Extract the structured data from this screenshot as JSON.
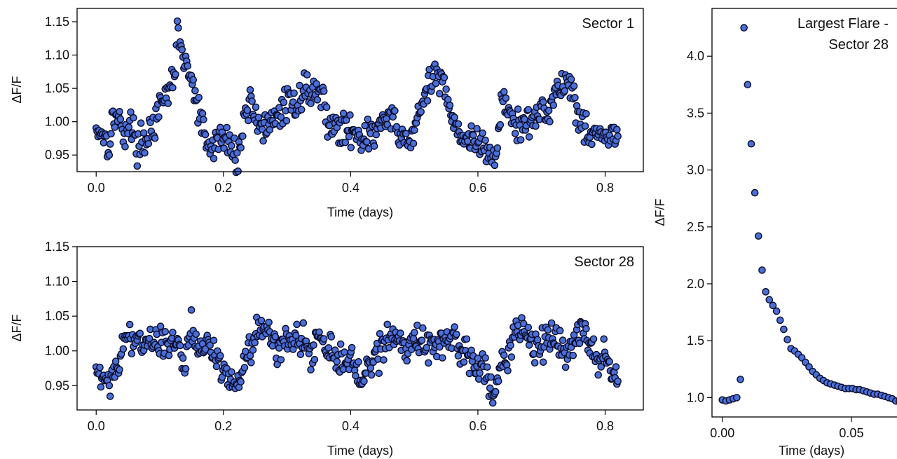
{
  "chart_data": [
    {
      "type": "scatter",
      "panel_label": "Sector 1",
      "xlabel": "Time (days)",
      "ylabel": "ΔF/F",
      "xlim": [
        -0.03,
        0.86
      ],
      "ylim": [
        0.925,
        1.17
      ],
      "xticks": [
        0.0,
        0.2,
        0.4,
        0.6,
        0.8
      ],
      "xtick_labels": [
        "0.0",
        "0.2",
        "0.4",
        "0.6",
        "0.8"
      ],
      "yticks": [
        0.95,
        1.0,
        1.05,
        1.1,
        1.15
      ],
      "ytick_labels": [
        "0.95",
        "1.00",
        "1.05",
        "1.10",
        "1.15"
      ],
      "marker_color": "#4a6fd6",
      "edge_color": "#0b0b2a",
      "grid": false,
      "keypoints": [
        [
          0,
          0.99
        ],
        [
          0.01,
          0.985
        ],
        [
          0.02,
          0.965
        ],
        [
          0.028,
          1.015
        ],
        [
          0.035,
          1.0
        ],
        [
          0.045,
          0.985
        ],
        [
          0.055,
          0.995
        ],
        [
          0.065,
          0.965
        ],
        [
          0.075,
          0.97
        ],
        [
          0.085,
          0.99
        ],
        [
          0.095,
          1.0
        ],
        [
          0.105,
          1.03
        ],
        [
          0.115,
          1.045
        ],
        [
          0.12,
          1.06
        ],
        [
          0.125,
          1.09
        ],
        [
          0.128,
          1.16
        ],
        [
          0.132,
          1.1
        ],
        [
          0.14,
          1.09
        ],
        [
          0.15,
          1.06
        ],
        [
          0.16,
          1.02
        ],
        [
          0.17,
          0.98
        ],
        [
          0.178,
          0.955
        ],
        [
          0.19,
          0.975
        ],
        [
          0.2,
          0.975
        ],
        [
          0.21,
          0.965
        ],
        [
          0.22,
          0.95
        ],
        [
          0.228,
          0.965
        ],
        [
          0.235,
          1.02
        ],
        [
          0.245,
          1.03
        ],
        [
          0.255,
          1.0
        ],
        [
          0.27,
          0.985
        ],
        [
          0.28,
          1.0
        ],
        [
          0.29,
          1.015
        ],
        [
          0.3,
          1.03
        ],
        [
          0.31,
          1.02
        ],
        [
          0.32,
          1.04
        ],
        [
          0.33,
          1.05
        ],
        [
          0.345,
          1.045
        ],
        [
          0.355,
          1.04
        ],
        [
          0.365,
          1.0
        ],
        [
          0.38,
          0.99
        ],
        [
          0.39,
          0.985
        ],
        [
          0.405,
          0.99
        ],
        [
          0.42,
          0.975
        ],
        [
          0.435,
          0.98
        ],
        [
          0.45,
          1.0
        ],
        [
          0.46,
          1.01
        ],
        [
          0.475,
          0.98
        ],
        [
          0.49,
          0.97
        ],
        [
          0.505,
          1.0
        ],
        [
          0.515,
          1.03
        ],
        [
          0.525,
          1.06
        ],
        [
          0.535,
          1.065
        ],
        [
          0.545,
          1.065
        ],
        [
          0.555,
          1.03
        ],
        [
          0.565,
          0.99
        ],
        [
          0.58,
          0.98
        ],
        [
          0.595,
          0.965
        ],
        [
          0.61,
          0.965
        ],
        [
          0.618,
          0.945
        ],
        [
          0.63,
          0.96
        ],
        [
          0.638,
          1.03
        ],
        [
          0.648,
          1.02
        ],
        [
          0.66,
          0.99
        ],
        [
          0.675,
          0.995
        ],
        [
          0.69,
          1.005
        ],
        [
          0.7,
          1.02
        ],
        [
          0.71,
          1.02
        ],
        [
          0.72,
          1.04
        ],
        [
          0.73,
          1.055
        ],
        [
          0.74,
          1.06
        ],
        [
          0.75,
          1.045
        ],
        [
          0.76,
          1.0
        ],
        [
          0.775,
          0.985
        ],
        [
          0.79,
          0.985
        ],
        [
          0.8,
          0.975
        ],
        [
          0.81,
          0.98
        ],
        [
          0.82,
          0.97
        ]
      ]
    },
    {
      "type": "scatter",
      "panel_label": "Sector 28",
      "xlabel": "Time (days)",
      "ylabel": "ΔF/F",
      "xlim": [
        -0.03,
        0.86
      ],
      "ylim": [
        0.915,
        1.15
      ],
      "xticks": [
        0.0,
        0.2,
        0.4,
        0.6,
        0.8
      ],
      "xtick_labels": [
        "0.0",
        "0.2",
        "0.4",
        "0.6",
        "0.8"
      ],
      "yticks": [
        0.95,
        1.0,
        1.05,
        1.1,
        1.15
      ],
      "ytick_labels": [
        "0.95",
        "1.00",
        "1.05",
        "1.10",
        "1.15"
      ],
      "marker_color": "#4a6fd6",
      "edge_color": "#0b0b2a",
      "grid": false,
      "keypoints": [
        [
          0,
          0.975
        ],
        [
          0.01,
          0.955
        ],
        [
          0.02,
          0.96
        ],
        [
          0.03,
          0.975
        ],
        [
          0.04,
          1.0
        ],
        [
          0.05,
          1.03
        ],
        [
          0.06,
          1.02
        ],
        [
          0.075,
          1.01
        ],
        [
          0.09,
          1.015
        ],
        [
          0.1,
          1.01
        ],
        [
          0.11,
          1.005
        ],
        [
          0.12,
          1.015
        ],
        [
          0.13,
          1.005
        ],
        [
          0.14,
          0.975
        ],
        [
          0.15,
          1.04
        ],
        [
          0.16,
          1.005
        ],
        [
          0.175,
          1.005
        ],
        [
          0.19,
          0.99
        ],
        [
          0.2,
          0.975
        ],
        [
          0.21,
          0.965
        ],
        [
          0.218,
          0.945
        ],
        [
          0.228,
          0.975
        ],
        [
          0.24,
          1.0
        ],
        [
          0.255,
          1.035
        ],
        [
          0.27,
          1.015
        ],
        [
          0.29,
          1.01
        ],
        [
          0.31,
          1.02
        ],
        [
          0.325,
          1.03
        ],
        [
          0.335,
          0.99
        ],
        [
          0.35,
          1.025
        ],
        [
          0.365,
          1.01
        ],
        [
          0.375,
          0.99
        ],
        [
          0.39,
          0.985
        ],
        [
          0.405,
          0.975
        ],
        [
          0.418,
          0.96
        ],
        [
          0.43,
          0.975
        ],
        [
          0.445,
          0.995
        ],
        [
          0.46,
          1.025
        ],
        [
          0.47,
          1.02
        ],
        [
          0.485,
          1.01
        ],
        [
          0.5,
          1.015
        ],
        [
          0.52,
          1.01
        ],
        [
          0.54,
          1.005
        ],
        [
          0.555,
          1.02
        ],
        [
          0.57,
          1.01
        ],
        [
          0.585,
          0.985
        ],
        [
          0.6,
          0.98
        ],
        [
          0.615,
          0.965
        ],
        [
          0.622,
          0.935
        ],
        [
          0.635,
          0.975
        ],
        [
          0.65,
          1.005
        ],
        [
          0.66,
          1.035
        ],
        [
          0.675,
          1.015
        ],
        [
          0.69,
          1.01
        ],
        [
          0.705,
          1.005
        ],
        [
          0.72,
          1.03
        ],
        [
          0.735,
          1.0
        ],
        [
          0.75,
          1.01
        ],
        [
          0.762,
          1.035
        ],
        [
          0.775,
          1.01
        ],
        [
          0.79,
          0.98
        ],
        [
          0.8,
          0.995
        ],
        [
          0.81,
          0.975
        ],
        [
          0.82,
          0.96
        ]
      ]
    },
    {
      "type": "scatter",
      "panel_label": "Largest Flare -\nSector 28",
      "panel_label_lines": [
        "Largest Flare -",
        "Sector 28"
      ],
      "xlabel": "Time (days)",
      "ylabel": "ΔF/F",
      "xlim": [
        -0.004,
        0.072
      ],
      "ylim": [
        0.83,
        4.42
      ],
      "xticks": [
        0.0,
        0.05
      ],
      "xtick_labels": [
        "0.00",
        "0.05"
      ],
      "yticks": [
        1.0,
        1.5,
        2.0,
        2.5,
        3.0,
        3.5,
        4.0
      ],
      "ytick_labels": [
        "1.0",
        "1.5",
        "2.0",
        "2.5",
        "3.0",
        "3.5",
        "4.0"
      ],
      "marker_color": "#4a6fd6",
      "edge_color": "#0b0b2a",
      "grid": false,
      "x": [
        0.0,
        0.0014,
        0.0028,
        0.0042,
        0.0056,
        0.007,
        0.0084,
        0.0098,
        0.0112,
        0.0126,
        0.014,
        0.0154,
        0.0168,
        0.0182,
        0.0196,
        0.021,
        0.0224,
        0.0238,
        0.0252,
        0.0266,
        0.028,
        0.0294,
        0.0308,
        0.0322,
        0.0336,
        0.035,
        0.0364,
        0.0378,
        0.0392,
        0.0406,
        0.042,
        0.0434,
        0.0448,
        0.0462,
        0.0476,
        0.049,
        0.0504,
        0.0518,
        0.0532,
        0.0546,
        0.056,
        0.0574,
        0.0588,
        0.0602,
        0.0616,
        0.063,
        0.0644,
        0.0658,
        0.0672,
        0.0686,
        0.07
      ],
      "y": [
        0.98,
        0.97,
        0.98,
        0.99,
        1.0,
        1.16,
        4.25,
        3.75,
        3.23,
        2.8,
        2.42,
        2.12,
        1.93,
        1.86,
        1.81,
        1.76,
        1.68,
        1.6,
        1.51,
        1.43,
        1.41,
        1.38,
        1.35,
        1.31,
        1.27,
        1.23,
        1.2,
        1.17,
        1.15,
        1.13,
        1.12,
        1.11,
        1.1,
        1.09,
        1.08,
        1.08,
        1.08,
        1.07,
        1.07,
        1.06,
        1.05,
        1.04,
        1.03,
        1.03,
        1.02,
        1.01,
        1.0,
        0.99,
        0.97,
        0.97,
        0.96
      ]
    }
  ]
}
